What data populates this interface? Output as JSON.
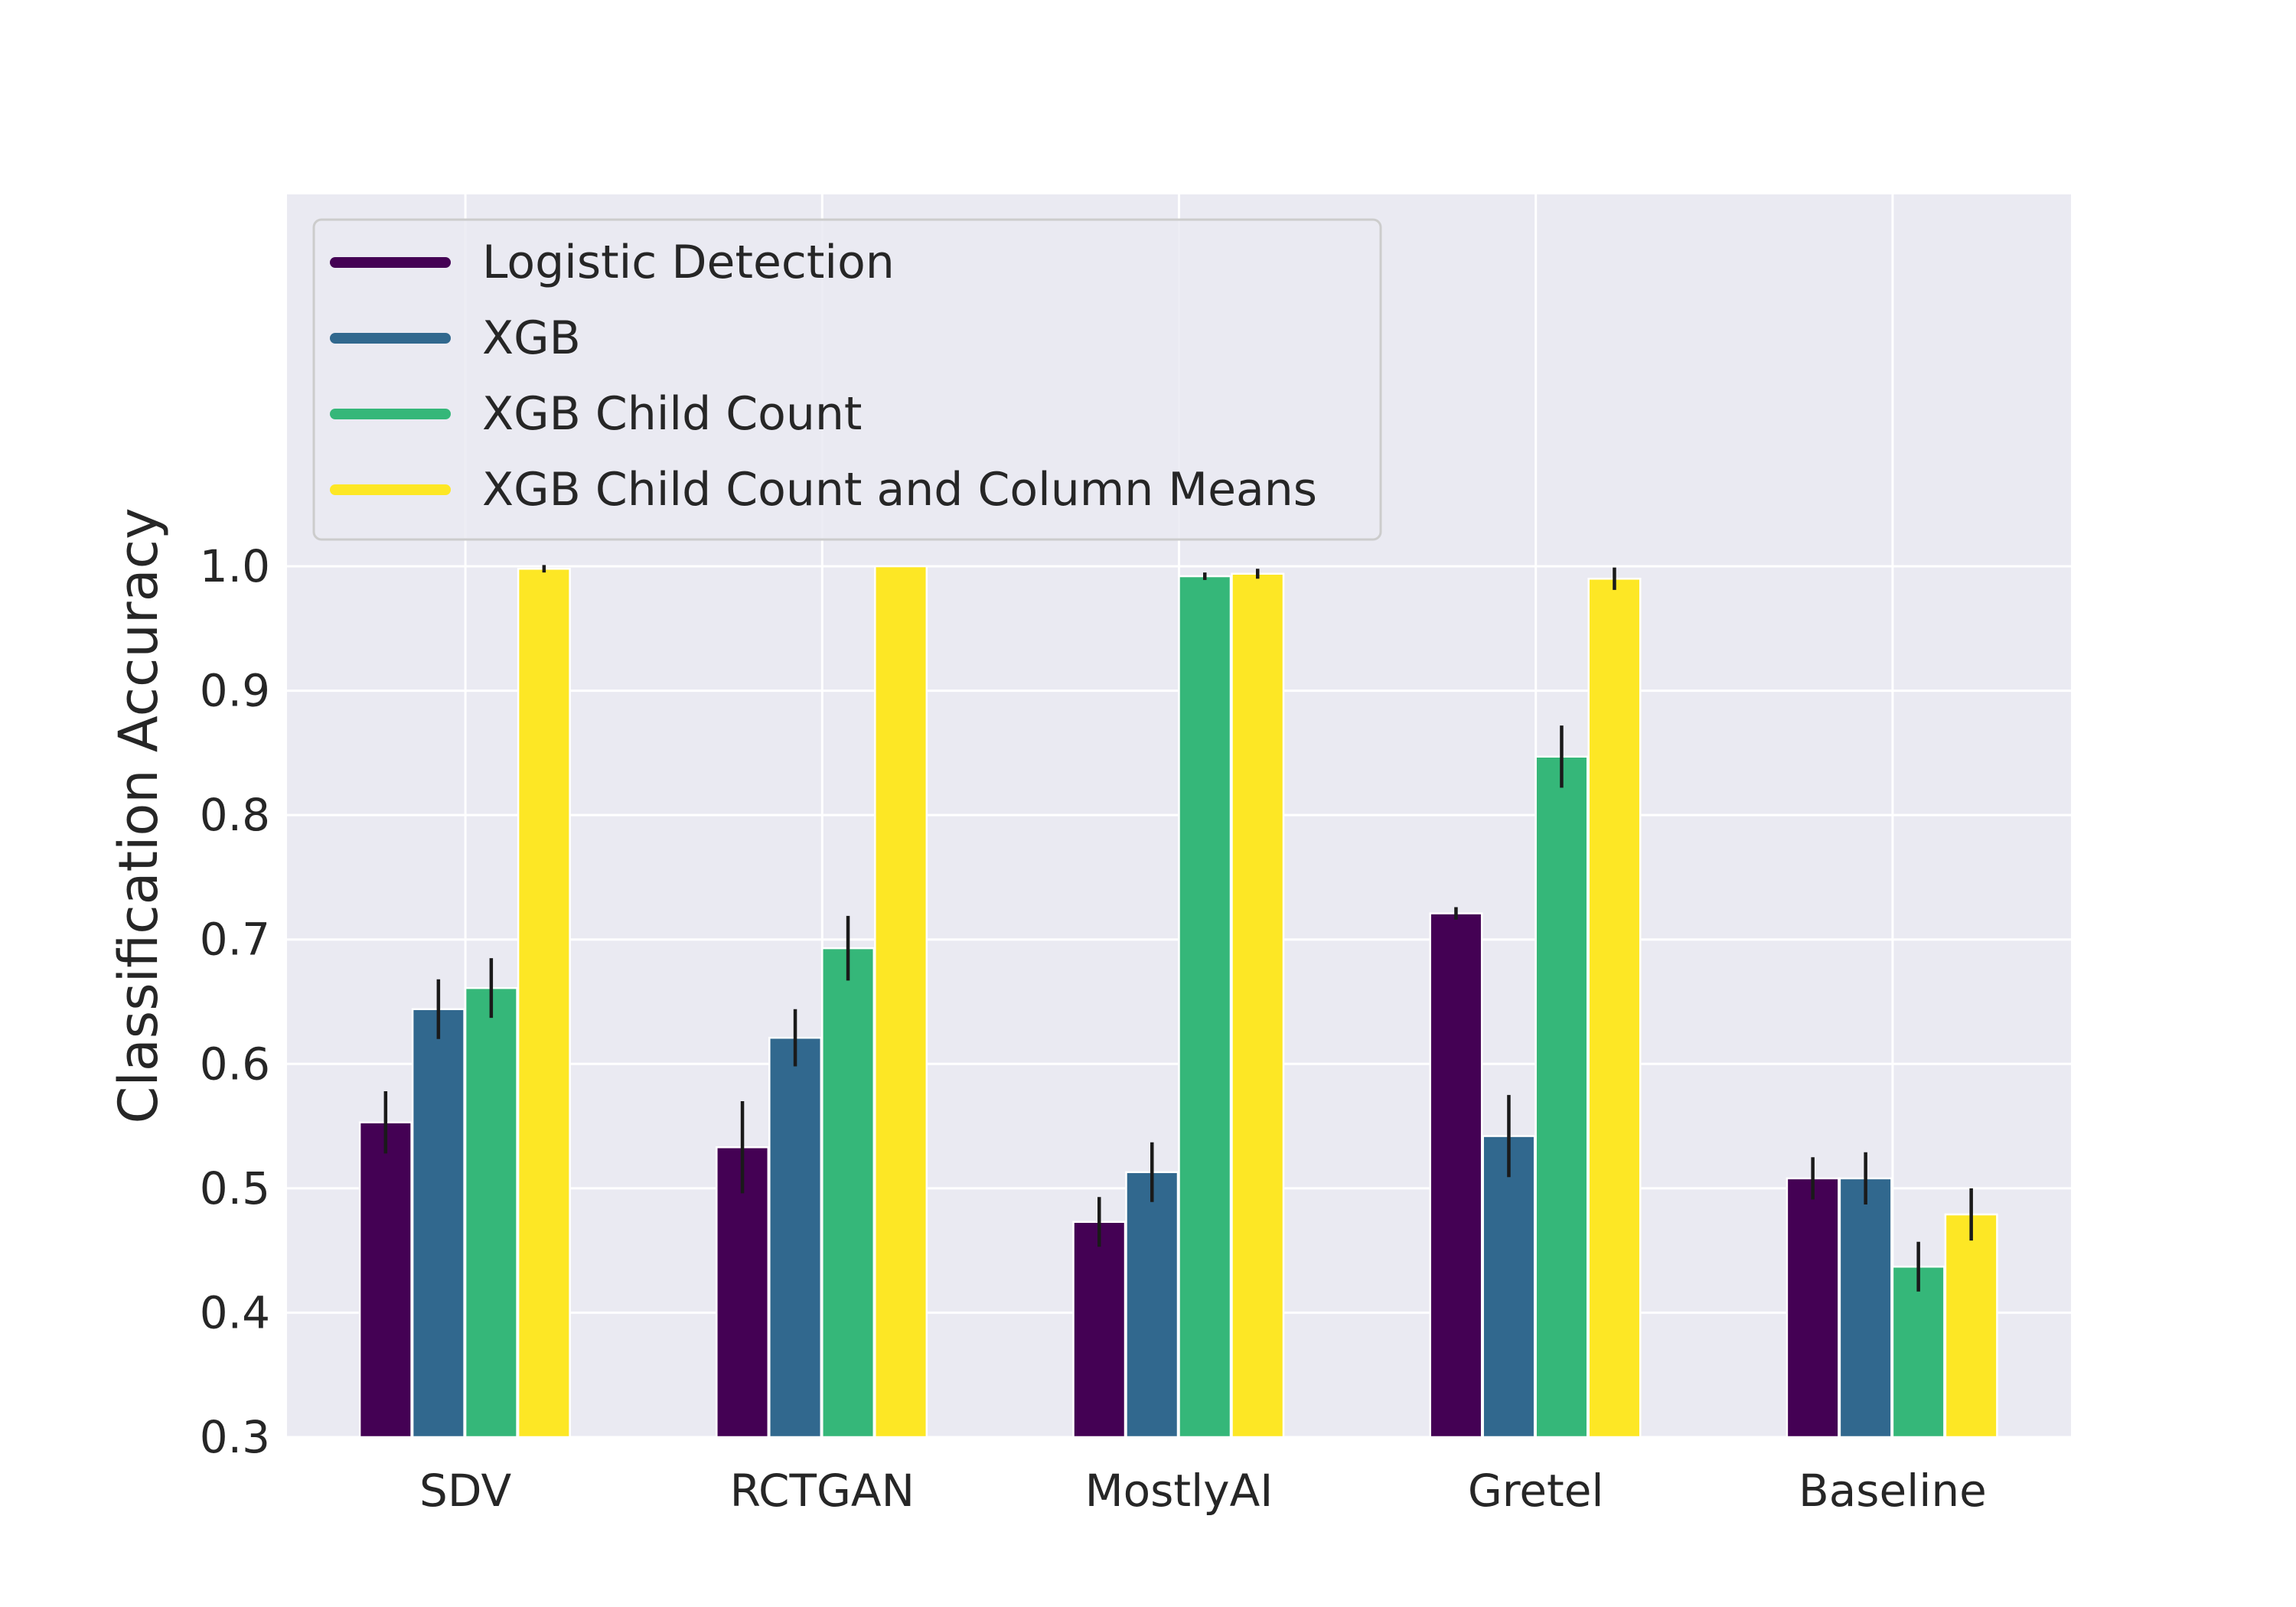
{
  "chart_data": {
    "type": "bar",
    "title": "",
    "xlabel": "",
    "ylabel": "Classification Accuracy",
    "ylim": [
      0.3,
      1.0
    ],
    "yticks": [
      "0.3",
      "0.4",
      "0.5",
      "0.6",
      "0.7",
      "0.8",
      "0.9",
      "1.0"
    ],
    "categories": [
      "SDV",
      "RCTGAN",
      "MostlyAI",
      "Gretel",
      "Baseline"
    ],
    "grid": true,
    "legend_position": "top-left",
    "series": [
      {
        "name": "Logistic Detection",
        "color": "#440154",
        "values": [
          0.553,
          0.533,
          0.473,
          0.721,
          0.508
        ],
        "errors": [
          0.025,
          0.037,
          0.02,
          0.005,
          0.017
        ]
      },
      {
        "name": "XGB",
        "color": "#31688e",
        "values": [
          0.644,
          0.621,
          0.513,
          0.542,
          0.508
        ],
        "errors": [
          0.024,
          0.023,
          0.024,
          0.033,
          0.021
        ]
      },
      {
        "name": "XGB Child Count",
        "color": "#35b779",
        "values": [
          0.661,
          0.693,
          0.992,
          0.847,
          0.437
        ],
        "errors": [
          0.024,
          0.026,
          0.003,
          0.025,
          0.02
        ]
      },
      {
        "name": "XGB Child Count and Column Means",
        "color": "#fde725",
        "values": [
          0.998,
          1.0,
          0.994,
          0.99,
          0.479
        ],
        "errors": [
          0.003,
          0.0,
          0.004,
          0.009,
          0.021
        ]
      }
    ]
  }
}
